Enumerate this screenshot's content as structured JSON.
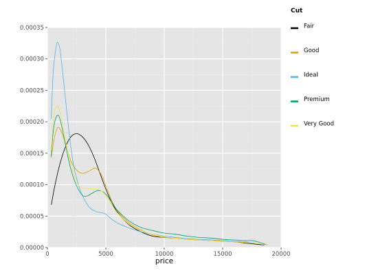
{
  "chart_data": {
    "type": "line",
    "title": "",
    "xlabel": "price",
    "ylabel": "",
    "xlim": [
      0,
      20000
    ],
    "ylim": [
      0,
      0.00035
    ],
    "x_ticks": [
      0,
      5000,
      10000,
      15000,
      20000
    ],
    "x_tick_labels": [
      "0",
      "5000",
      "10000",
      "15000",
      "20000"
    ],
    "y_ticks": [
      0,
      5e-05,
      0.0001,
      0.00015,
      0.0002,
      0.00025,
      0.0003,
      0.00035
    ],
    "y_tick_labels": [
      "0.00000",
      "0.00005",
      "0.00010",
      "0.00015",
      "0.00020",
      "0.00025",
      "0.00030",
      "0.00035"
    ],
    "grid": true,
    "legend": {
      "title": "Cut",
      "placement": "right"
    },
    "series": [
      {
        "name": "Fair",
        "color": "#000000",
        "x": [
          337,
          600,
          1000,
          1500,
          2000,
          2500,
          3000,
          3500,
          4000,
          4500,
          5000,
          5500,
          6000,
          7000,
          8000,
          9000,
          10000,
          11000,
          12000,
          13000,
          14000,
          15000,
          16000,
          17000,
          18000,
          18574
        ],
        "y": [
          6.8e-05,
          9.5e-05,
          0.000128,
          0.000158,
          0.000176,
          0.000181,
          0.000176,
          0.000163,
          0.000143,
          0.000118,
          9.3e-05,
          7.2e-05,
          5.6e-05,
          3.6e-05,
          2.5e-05,
          1.8e-05,
          1.6e-05,
          1.5e-05,
          1.3e-05,
          1.2e-05,
          1.1e-05,
          1e-05,
          9e-06,
          7e-06,
          5e-06,
          4e-06
        ]
      },
      {
        "name": "Good",
        "color": "#E69F00",
        "x": [
          327,
          600,
          900,
          1200,
          1600,
          2000,
          2500,
          3000,
          3500,
          4000,
          4300,
          4700,
          5000,
          5500,
          6000,
          7000,
          8000,
          9000,
          10000,
          11000,
          12000,
          13000,
          14000,
          15000,
          16000,
          17000,
          18000,
          18788
        ],
        "y": [
          0.000143,
          0.000175,
          0.000191,
          0.000184,
          0.000162,
          0.000138,
          0.000123,
          0.000118,
          0.000121,
          0.000126,
          0.000124,
          0.000113,
          9.8e-05,
          7.5e-05,
          5.8e-05,
          3.9e-05,
          2.8e-05,
          2e-05,
          1.6e-05,
          1.5e-05,
          1.3e-05,
          1.2e-05,
          1.1e-05,
          1e-05,
          9e-06,
          8e-06,
          6e-06,
          4e-06
        ]
      },
      {
        "name": "Ideal",
        "color": "#56B4E9",
        "x": [
          326,
          500,
          750,
          900,
          1100,
          1400,
          1800,
          2200,
          2700,
          3200,
          3700,
          4200,
          4700,
          5000,
          5500,
          6000,
          7000,
          8000,
          9000,
          10000,
          11000,
          12000,
          13000,
          14000,
          15000,
          16000,
          17000,
          18000,
          18806
        ],
        "y": [
          0.000205,
          0.00028,
          0.00032,
          0.000326,
          0.000312,
          0.000262,
          0.000192,
          0.000135,
          9.7e-05,
          7.5e-05,
          6.2e-05,
          5.7e-05,
          5.5e-05,
          5.3e-05,
          4.5e-05,
          3.9e-05,
          3.1e-05,
          2.5e-05,
          2.1e-05,
          1.8e-05,
          1.6e-05,
          1.4e-05,
          1.3e-05,
          1.2e-05,
          1.1e-05,
          1e-05,
          9e-06,
          6e-06,
          4e-06
        ]
      },
      {
        "name": "Premium",
        "color": "#009E73",
        "x": [
          326,
          500,
          700,
          950,
          1200,
          1600,
          2000,
          2500,
          3000,
          3400,
          3800,
          4200,
          4600,
          5000,
          5500,
          6000,
          7000,
          8000,
          9000,
          10000,
          11000,
          12000,
          13000,
          14000,
          15000,
          16000,
          17000,
          17500,
          18000,
          18823
        ],
        "y": [
          0.000145,
          0.000185,
          0.000205,
          0.00021,
          0.000195,
          0.000158,
          0.000125,
          9.8e-05,
          8.3e-05,
          8.2e-05,
          8.6e-05,
          9e-05,
          9e-05,
          8.5e-05,
          7.2e-05,
          5.9e-05,
          4.2e-05,
          3.2e-05,
          2.7e-05,
          2.3e-05,
          2.1e-05,
          1.8e-05,
          1.6e-05,
          1.5e-05,
          1.3e-05,
          1.2e-05,
          1.1e-05,
          1.1e-05,
          9e-06,
          4e-06
        ]
      },
      {
        "name": "Very Good",
        "color": "#F0E442",
        "x": [
          336,
          550,
          800,
          1000,
          1300,
          1600,
          2000,
          2400,
          2800,
          3200,
          3700,
          4200,
          4700,
          5000,
          5500,
          6000,
          7000,
          8000,
          9000,
          10000,
          11000,
          12000,
          13000,
          14000,
          15000,
          16000,
          17000,
          18000,
          18818
        ],
        "y": [
          0.000155,
          0.00021,
          0.000225,
          0.00022,
          0.000195,
          0.000165,
          0.000133,
          0.000108,
          9.6e-05,
          9.4e-05,
          9.4e-05,
          9.3e-05,
          8.9e-05,
          8.2e-05,
          6.8e-05,
          5.5e-05,
          3.7e-05,
          2.7e-05,
          2.1e-05,
          1.7e-05,
          1.5e-05,
          1.3e-05,
          1.2e-05,
          1.1e-05,
          1e-05,
          9e-06,
          8e-06,
          6e-06,
          4e-06
        ]
      }
    ]
  }
}
